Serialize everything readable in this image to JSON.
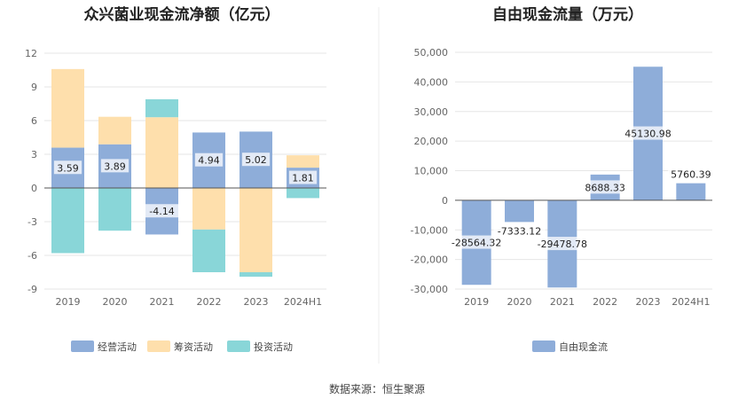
{
  "source": "数据来源：恒生聚源",
  "colors": {
    "operating": "#8eadd9",
    "financing": "#fedfac",
    "investing": "#89d6d8",
    "fcf": "#8eadd9",
    "grid": "#e6e6e6",
    "axis": "#555555"
  },
  "chart_data": [
    {
      "type": "bar",
      "stacked": true,
      "title": "众兴菌业现金流净额（亿元）",
      "categories": [
        "2019",
        "2020",
        "2021",
        "2022",
        "2023",
        "2024H1"
      ],
      "ylim": [
        -9,
        12
      ],
      "yticks": [
        12,
        9,
        6,
        3,
        0,
        -3,
        -6,
        -9
      ],
      "ytick_labels": [
        "12",
        "9",
        "6",
        "3",
        "0",
        "-3",
        "-6",
        "-9"
      ],
      "grid": true,
      "legend_position": "bottom",
      "series": [
        {
          "name": "经营活动",
          "values": [
            3.59,
            3.89,
            -4.14,
            4.94,
            5.02,
            1.81
          ],
          "labels": [
            "3.59",
            "3.89",
            "-4.14",
            "4.94",
            "5.02",
            "1.81"
          ]
        },
        {
          "name": "筹资活动",
          "values": [
            7.0,
            2.45,
            6.3,
            -3.7,
            -7.5,
            1.1
          ]
        },
        {
          "name": "投资活动",
          "values": [
            -5.8,
            -3.8,
            1.6,
            -3.8,
            -0.4,
            -0.9
          ]
        }
      ]
    },
    {
      "type": "bar",
      "title": "自由现金流量（万元）",
      "categories": [
        "2019",
        "2020",
        "2021",
        "2022",
        "2023",
        "2024H1"
      ],
      "ylim": [
        -30000,
        50000
      ],
      "yticks": [
        50000,
        40000,
        30000,
        20000,
        10000,
        0,
        -10000,
        -20000,
        -30000
      ],
      "ytick_labels": [
        "50,000",
        "40,000",
        "30,000",
        "20,000",
        "10,000",
        "0",
        "-10,000",
        "-20,000",
        "-30,000"
      ],
      "grid": true,
      "legend_position": "bottom",
      "series": [
        {
          "name": "自由现金流",
          "values": [
            -28564.32,
            -7333.12,
            -29478.78,
            8688.33,
            45130.98,
            5760.39
          ],
          "labels": [
            "-28564.32",
            "-7333.12",
            "-29478.78",
            "8688.33",
            "45130.98",
            "5760.39"
          ]
        }
      ]
    }
  ]
}
